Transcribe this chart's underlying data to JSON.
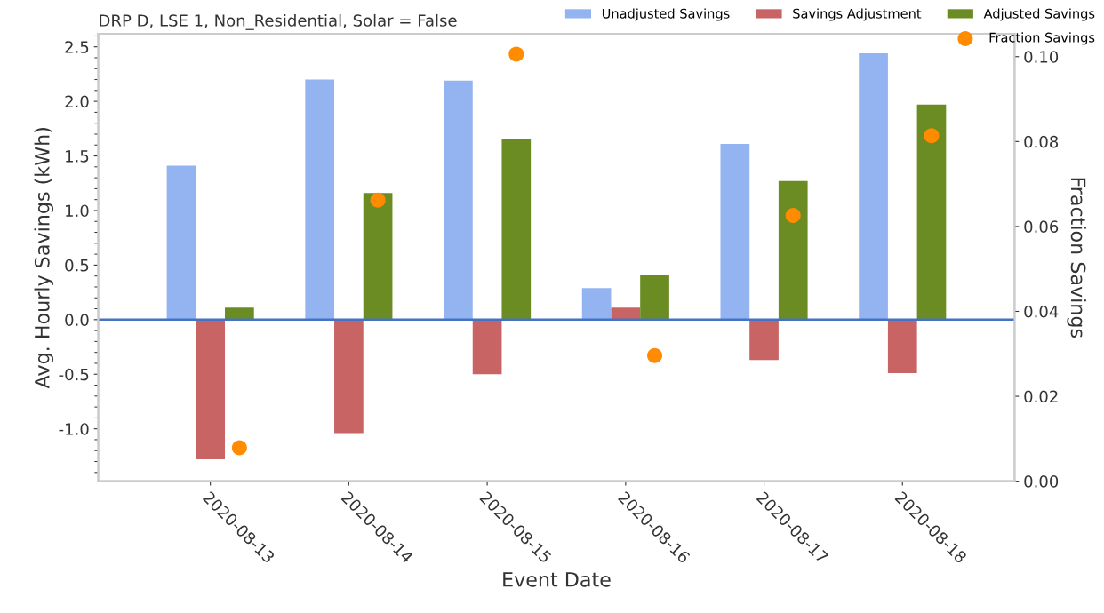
{
  "chart_data": {
    "type": "bar",
    "title": "DRP D, LSE 1, Non_Residential, Solar = False",
    "xlabel": "Event Date",
    "ylabel": "Avg. Hourly Savings (kWh)",
    "y2label": "Fraction Savings",
    "categories": [
      "2020-08-13",
      "2020-08-14",
      "2020-08-15",
      "2020-08-16",
      "2020-08-17",
      "2020-08-18"
    ],
    "series": [
      {
        "name": "Unadjusted Savings",
        "color": "#93b4f0",
        "values": [
          1.41,
          2.2,
          2.19,
          0.29,
          1.61,
          2.44
        ]
      },
      {
        "name": "Savings Adjustment",
        "color": "#c86464",
        "values": [
          -1.28,
          -1.04,
          -0.5,
          0.11,
          -0.37,
          -0.49
        ]
      },
      {
        "name": "Adjusted Savings",
        "color": "#6a8c23",
        "values": [
          0.11,
          1.16,
          1.66,
          0.41,
          1.27,
          1.97
        ]
      },
      {
        "name": "Fraction Savings",
        "type": "scatter",
        "axis": "y2",
        "color": "#ff8c00",
        "marker": "circle",
        "values": [
          0.0079,
          0.0662,
          0.1006,
          0.0296,
          0.0626,
          0.0814
        ]
      }
    ],
    "ylim": [
      -1.48,
      2.62
    ],
    "yticks": [
      {
        "value": -1.0,
        "label": "-1.0"
      },
      {
        "value": -0.5,
        "label": "-0.5"
      },
      {
        "value": 0.0,
        "label": "0.0"
      },
      0.5,
      {
        "value": 1.0,
        "label": "1.0"
      },
      1.5,
      {
        "value": 2.0,
        "label": "2.0"
      },
      2.5
    ],
    "y2lim": [
      0,
      0.1054
    ],
    "y2ticks": [
      {
        "value": 0,
        "label": "0.00"
      },
      0.02,
      0.04,
      0.06,
      0.08,
      {
        "value": 0.1,
        "label": "0.10"
      }
    ],
    "ref_lines": [
      {
        "axis": "y",
        "value": 0,
        "color": "#4472c4"
      }
    ],
    "legend": "top right",
    "grid": false
  }
}
